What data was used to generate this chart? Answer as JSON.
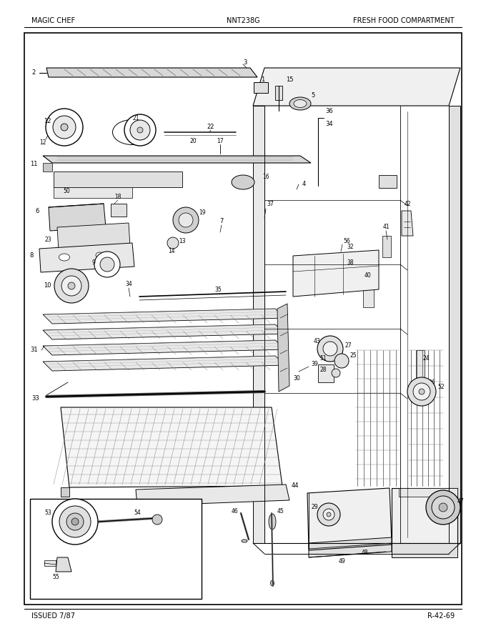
{
  "title_left": "MAGIC CHEF",
  "title_center": "NNT238G",
  "title_right": "FRESH FOOD COMPARTMENT",
  "footer_left": "ISSUED 7/87",
  "footer_right": "R-42-69",
  "bg_color": "#ffffff",
  "fig_width": 6.8,
  "fig_height": 8.9,
  "dpi": 100
}
